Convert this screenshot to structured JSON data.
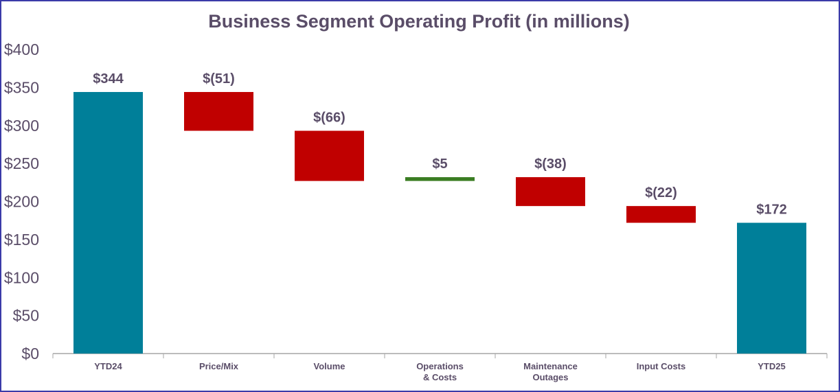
{
  "chart_data": {
    "type": "waterfall",
    "title": "Business Segment Operating Profit (in millions)",
    "xlabel": "",
    "ylabel": "",
    "ylim": [
      0,
      400
    ],
    "yticks": [
      "$0",
      "$50",
      "$100",
      "$150",
      "$200",
      "$250",
      "$300",
      "$350",
      "$400"
    ],
    "ytick_values": [
      0,
      50,
      100,
      150,
      200,
      250,
      300,
      350,
      400
    ],
    "grid": false,
    "categories": [
      [
        "YTD24"
      ],
      [
        "Price/Mix"
      ],
      [
        "Volume"
      ],
      [
        "Operations",
        "& Costs"
      ],
      [
        "Maintenance",
        "Outages"
      ],
      [
        "Input Costs"
      ],
      [
        "YTD25"
      ]
    ],
    "values": [
      344,
      -51,
      -66,
      5,
      -38,
      -22,
      172
    ],
    "kinds": [
      "total",
      "delta",
      "delta",
      "delta",
      "delta",
      "delta",
      "total"
    ],
    "data_labels": [
      "$344",
      "$(51)",
      "$(66)",
      "$5",
      "$(38)",
      "$(22)",
      "$172"
    ],
    "colors": {
      "total": "#007f99",
      "decrease": "#c00000",
      "increase": "#3a7d22",
      "text": "#5a4d68",
      "axis": "#a6a6a6"
    }
  }
}
